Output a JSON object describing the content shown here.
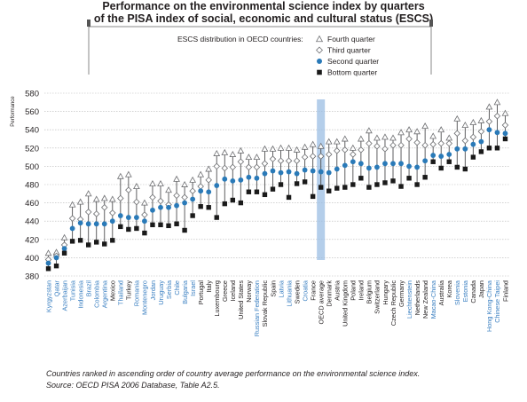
{
  "title": {
    "line1": "Performance on the environmental science index by quarters",
    "line2": "of the PISA index of social, economic and cultural status (ESCS)"
  },
  "legend": {
    "heading": "ESCS distribution in OECD countries:",
    "items": [
      "Fourth quarter",
      "Third quarter",
      "Second quarter",
      "Bottom quarter"
    ]
  },
  "footer": {
    "line1": "Countries ranked in ascending order of country average performance on the environmental science index.",
    "line2": "Source: OECD PISA 2006 Database, Table A2.5."
  },
  "colors": {
    "partner_label": "#3a7fc1",
    "oecd_label": "#231f20",
    "second_quarter": "#2a7ab8",
    "bottom_quarter": "#1a1a1a",
    "average_band": "#9bbde3"
  },
  "chart_data": {
    "type": "scatter",
    "title": "Performance on the environmental science index by quarters of the PISA index of social, economic and cultural status (ESCS)",
    "ylabel": "Performance",
    "ylim": [
      380,
      580
    ],
    "yticks": [
      380,
      400,
      420,
      440,
      460,
      480,
      500,
      520,
      540,
      560,
      580
    ],
    "grid": true,
    "legend_position": "top-right",
    "categories": [
      "Kyrgyzstan",
      "Qatar",
      "Azerbaijan",
      "Tunisia",
      "Indonesia",
      "Brazil",
      "Colombia",
      "Argentina",
      "Mexico",
      "Thailand",
      "Turkey",
      "Romania",
      "Montenegro",
      "Jordan",
      "Uruguay",
      "Serbia",
      "Chile",
      "Bulgaria",
      "Israel",
      "Portugal",
      "Italy",
      "Luxembourg",
      "Greece",
      "Iceland",
      "United States",
      "Norway",
      "Russian Federation",
      "Slovak Republic",
      "Spain",
      "Latvia",
      "Lithuania",
      "Sweden",
      "Croatia",
      "France",
      "OECD average",
      "Denmark",
      "Austria",
      "United Kingdom",
      "Poland",
      "Ireland",
      "Belgium",
      "Switzerland",
      "Hungary",
      "Czech Republic",
      "Germany",
      "Liechtenstein",
      "Netherlands",
      "New Zealand",
      "Macao-China",
      "Australia",
      "Korea",
      "Slovenia",
      "Estonia",
      "Canada",
      "Japan",
      "Hong Kong-China",
      "Chinese Taipei",
      "Finland"
    ],
    "category_group": [
      "partner",
      "partner",
      "partner",
      "partner",
      "partner",
      "partner",
      "partner",
      "partner",
      "oecd",
      "partner",
      "oecd",
      "partner",
      "partner",
      "partner",
      "partner",
      "partner",
      "partner",
      "partner",
      "partner",
      "oecd",
      "oecd",
      "oecd",
      "oecd",
      "oecd",
      "oecd",
      "oecd",
      "partner",
      "oecd",
      "oecd",
      "partner",
      "partner",
      "oecd",
      "partner",
      "oecd",
      "average",
      "oecd",
      "oecd",
      "oecd",
      "oecd",
      "oecd",
      "oecd",
      "oecd",
      "oecd",
      "oecd",
      "oecd",
      "partner",
      "oecd",
      "oecd",
      "partner",
      "oecd",
      "oecd",
      "partner",
      "partner",
      "oecd",
      "oecd",
      "partner",
      "partner",
      "oecd"
    ],
    "series": [
      {
        "name": "Fourth quarter",
        "marker": "triangle",
        "values": [
          405,
          406,
          422,
          458,
          461,
          470,
          464,
          465,
          464,
          489,
          491,
          478,
          460,
          481,
          481,
          474,
          486,
          480,
          485,
          491,
          497,
          514,
          515,
          513,
          517,
          510,
          510,
          519,
          519,
          520,
          520,
          518,
          521,
          524,
          522,
          527,
          527,
          530,
          520,
          530,
          539,
          531,
          532,
          531,
          537,
          540,
          538,
          544,
          533,
          540,
          531,
          552,
          545,
          548,
          550,
          565,
          570,
          558
        ]
      },
      {
        "name": "Third quarter",
        "marker": "diamond",
        "values": [
          398,
          402,
          414,
          443,
          442,
          450,
          448,
          455,
          449,
          465,
          474,
          461,
          447,
          466,
          462,
          458,
          468,
          466,
          473,
          478,
          485,
          500,
          498,
          499,
          505,
          499,
          499,
          503,
          508,
          506,
          506,
          506,
          510,
          511,
          511,
          513,
          517,
          518,
          513,
          518,
          525,
          522,
          519,
          523,
          523,
          530,
          526,
          523,
          524,
          525,
          525,
          536,
          528,
          532,
          538,
          549,
          555,
          545
        ]
      },
      {
        "name": "Second quarter",
        "marker": "circle",
        "values": [
          394,
          400,
          410,
          432,
          438,
          437,
          437,
          437,
          440,
          446,
          444,
          444,
          440,
          452,
          455,
          455,
          457,
          460,
          464,
          473,
          472,
          479,
          486,
          484,
          485,
          488,
          487,
          492,
          495,
          493,
          494,
          492,
          496,
          495,
          494,
          493,
          497,
          501,
          505,
          503,
          498,
          499,
          503,
          503,
          503,
          500,
          499,
          506,
          512,
          511,
          513,
          519,
          519,
          524,
          527,
          540,
          537,
          536
        ]
      },
      {
        "name": "Bottom quarter",
        "marker": "square",
        "values": [
          388,
          391,
          405,
          418,
          419,
          414,
          417,
          415,
          419,
          434,
          431,
          432,
          427,
          436,
          436,
          435,
          437,
          430,
          446,
          456,
          455,
          444,
          459,
          463,
          460,
          472,
          472,
          469,
          475,
          480,
          466,
          481,
          483,
          467,
          477,
          473,
          476,
          477,
          480,
          487,
          477,
          480,
          482,
          484,
          478,
          487,
          480,
          488,
          505,
          498,
          505,
          499,
          497,
          510,
          516,
          520,
          520,
          530
        ]
      }
    ]
  }
}
